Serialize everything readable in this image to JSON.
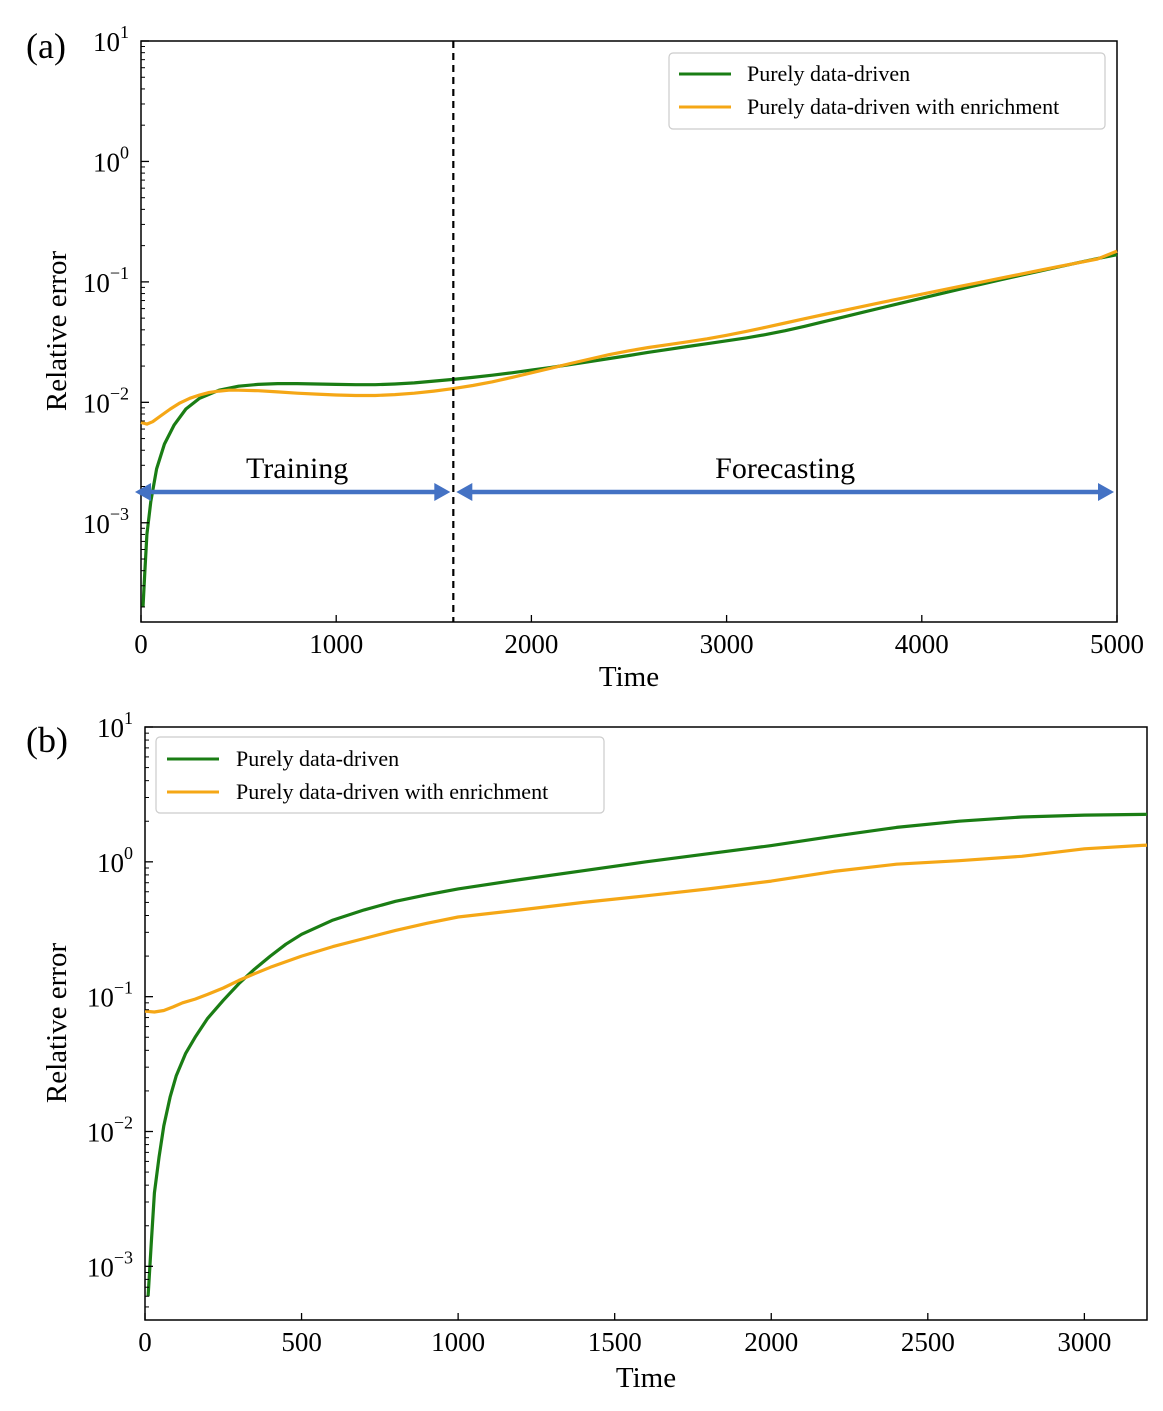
{
  "chart_data": [
    {
      "panel_label": "(a)",
      "type": "line",
      "xlabel": "Time",
      "ylabel": "Relative error",
      "yscale": "log",
      "xlim": [
        0,
        5000
      ],
      "ylim": [
        0.00015,
        10
      ],
      "xticks": [
        {
          "value": 0,
          "label": "0"
        },
        {
          "value": 1000,
          "label": "1000"
        },
        {
          "value": 2000,
          "label": "2000"
        },
        {
          "value": 3000,
          "label": "3000"
        },
        {
          "value": 4000,
          "label": "4000"
        },
        {
          "value": 5000,
          "label": "5000"
        }
      ],
      "yticks": [
        {
          "value": 0.001,
          "base": "10",
          "exp": "−3"
        },
        {
          "value": 0.01,
          "base": "10",
          "exp": "−2"
        },
        {
          "value": 0.1,
          "base": "10",
          "exp": "−1"
        },
        {
          "value": 1,
          "base": "10",
          "exp": "0"
        },
        {
          "value": 10,
          "base": "10",
          "exp": "1"
        }
      ],
      "legend_position": "top-right",
      "series": [
        {
          "name": "Purely data-driven",
          "color": "#1a7d14",
          "points": [
            [
              10,
              0.0002
            ],
            [
              20,
              0.0004
            ],
            [
              30,
              0.0008
            ],
            [
              50,
              0.0015
            ],
            [
              80,
              0.0028
            ],
            [
              120,
              0.0045
            ],
            [
              170,
              0.0065
            ],
            [
              230,
              0.0088
            ],
            [
              300,
              0.0108
            ],
            [
              400,
              0.0126
            ],
            [
              500,
              0.0136
            ],
            [
              600,
              0.0141
            ],
            [
              700,
              0.0143
            ],
            [
              800,
              0.0143
            ],
            [
              900,
              0.0142
            ],
            [
              1000,
              0.0141
            ],
            [
              1100,
              0.014
            ],
            [
              1200,
              0.014
            ],
            [
              1300,
              0.0142
            ],
            [
              1400,
              0.0145
            ],
            [
              1500,
              0.015
            ],
            [
              1600,
              0.0155
            ],
            [
              1700,
              0.0161
            ],
            [
              1800,
              0.0168
            ],
            [
              1900,
              0.0176
            ],
            [
              2000,
              0.0185
            ],
            [
              2100,
              0.0195
            ],
            [
              2200,
              0.0206
            ],
            [
              2300,
              0.0218
            ],
            [
              2400,
              0.0231
            ],
            [
              2500,
              0.0245
            ],
            [
              2600,
              0.026
            ],
            [
              2700,
              0.0275
            ],
            [
              2800,
              0.0291
            ],
            [
              2900,
              0.0307
            ],
            [
              3000,
              0.0324
            ],
            [
              3100,
              0.0343
            ],
            [
              3200,
              0.0365
            ],
            [
              3300,
              0.0393
            ],
            [
              3400,
              0.0428
            ],
            [
              3500,
              0.0468
            ],
            [
              3600,
              0.0512
            ],
            [
              3700,
              0.056
            ],
            [
              3800,
              0.0613
            ],
            [
              3900,
              0.067
            ],
            [
              4000,
              0.0732
            ],
            [
              4100,
              0.08
            ],
            [
              4200,
              0.0873
            ],
            [
              4300,
              0.0952
            ],
            [
              4400,
              0.1037
            ],
            [
              4500,
              0.1128
            ],
            [
              4600,
              0.1225
            ],
            [
              4700,
              0.133
            ],
            [
              4800,
              0.1443
            ],
            [
              4900,
              0.1562
            ],
            [
              5000,
              0.168
            ]
          ]
        },
        {
          "name": "Purely data-driven with enrichment",
          "color": "#f5a716",
          "points": [
            [
              0,
              0.0068
            ],
            [
              30,
              0.0066
            ],
            [
              60,
              0.0069
            ],
            [
              100,
              0.0077
            ],
            [
              150,
              0.0088
            ],
            [
              200,
              0.0099
            ],
            [
              250,
              0.0108
            ],
            [
              300,
              0.0115
            ],
            [
              350,
              0.0121
            ],
            [
              400,
              0.0124
            ],
            [
              450,
              0.0126
            ],
            [
              500,
              0.0126
            ],
            [
              600,
              0.0125
            ],
            [
              700,
              0.0122
            ],
            [
              800,
              0.0119
            ],
            [
              900,
              0.0117
            ],
            [
              1000,
              0.0115
            ],
            [
              1100,
              0.0114
            ],
            [
              1200,
              0.0114
            ],
            [
              1300,
              0.0116
            ],
            [
              1400,
              0.0119
            ],
            [
              1500,
              0.0124
            ],
            [
              1600,
              0.013
            ],
            [
              1700,
              0.0138
            ],
            [
              1800,
              0.0148
            ],
            [
              1900,
              0.0161
            ],
            [
              2000,
              0.0176
            ],
            [
              2100,
              0.0192
            ],
            [
              2200,
              0.021
            ],
            [
              2300,
              0.0229
            ],
            [
              2400,
              0.0249
            ],
            [
              2500,
              0.0268
            ],
            [
              2600,
              0.0285
            ],
            [
              2700,
              0.0301
            ],
            [
              2800,
              0.0318
            ],
            [
              2900,
              0.0337
            ],
            [
              3000,
              0.036
            ],
            [
              3100,
              0.0388
            ],
            [
              3200,
              0.042
            ],
            [
              3300,
              0.0456
            ],
            [
              3400,
              0.0495
            ],
            [
              3500,
              0.0536
            ],
            [
              3600,
              0.058
            ],
            [
              3700,
              0.0627
            ],
            [
              3800,
              0.0678
            ],
            [
              3900,
              0.0732
            ],
            [
              4000,
              0.079
            ],
            [
              4100,
              0.0853
            ],
            [
              4200,
              0.092
            ],
            [
              4300,
              0.0992
            ],
            [
              4400,
              0.107
            ],
            [
              4500,
              0.1153
            ],
            [
              4600,
              0.1243
            ],
            [
              4700,
              0.1339
            ],
            [
              4800,
              0.1441
            ],
            [
              4900,
              0.155
            ],
            [
              5000,
              0.18
            ]
          ]
        }
      ],
      "annotations": {
        "divider_x": 1600,
        "arrow_y": 0.0018,
        "training_label": "Training",
        "forecasting_label": "Forecasting",
        "arrow_color": "#4472c4"
      }
    },
    {
      "panel_label": "(b)",
      "type": "line",
      "xlabel": "Time",
      "ylabel": "Relative error",
      "yscale": "log",
      "xlim": [
        0,
        3200
      ],
      "ylim": [
        0.0004,
        10
      ],
      "xticks": [
        {
          "value": 0,
          "label": "0"
        },
        {
          "value": 500,
          "label": "500"
        },
        {
          "value": 1000,
          "label": "1000"
        },
        {
          "value": 1500,
          "label": "1500"
        },
        {
          "value": 2000,
          "label": "2000"
        },
        {
          "value": 2500,
          "label": "2500"
        },
        {
          "value": 3000,
          "label": "3000"
        }
      ],
      "yticks": [
        {
          "value": 0.001,
          "base": "10",
          "exp": "−3"
        },
        {
          "value": 0.01,
          "base": "10",
          "exp": "−2"
        },
        {
          "value": 0.1,
          "base": "10",
          "exp": "−1"
        },
        {
          "value": 1,
          "base": "10",
          "exp": "0"
        },
        {
          "value": 10,
          "base": "10",
          "exp": "1"
        }
      ],
      "legend_position": "top-left",
      "series": [
        {
          "name": "Purely data-driven",
          "color": "#1a7d14",
          "points": [
            [
              10,
              0.0006
            ],
            [
              20,
              0.0015
            ],
            [
              30,
              0.0035
            ],
            [
              45,
              0.0065
            ],
            [
              60,
              0.011
            ],
            [
              80,
              0.018
            ],
            [
              100,
              0.026
            ],
            [
              130,
              0.038
            ],
            [
              160,
              0.05
            ],
            [
              200,
              0.069
            ],
            [
              250,
              0.094
            ],
            [
              300,
              0.125
            ],
            [
              350,
              0.16
            ],
            [
              400,
              0.2
            ],
            [
              450,
              0.245
            ],
            [
              500,
              0.29
            ],
            [
              600,
              0.37
            ],
            [
              700,
              0.44
            ],
            [
              800,
              0.51
            ],
            [
              900,
              0.57
            ],
            [
              1000,
              0.63
            ],
            [
              1200,
              0.74
            ],
            [
              1400,
              0.86
            ],
            [
              1600,
              1.0
            ],
            [
              1800,
              1.15
            ],
            [
              2000,
              1.32
            ],
            [
              2200,
              1.55
            ],
            [
              2400,
              1.8
            ],
            [
              2600,
              2.0
            ],
            [
              2800,
              2.15
            ],
            [
              3000,
              2.22
            ],
            [
              3200,
              2.25
            ]
          ]
        },
        {
          "name": "Purely data-driven with enrichment",
          "color": "#f5a716",
          "points": [
            [
              0,
              0.078
            ],
            [
              30,
              0.077
            ],
            [
              60,
              0.079
            ],
            [
              90,
              0.084
            ],
            [
              120,
              0.09
            ],
            [
              160,
              0.096
            ],
            [
              200,
              0.104
            ],
            [
              250,
              0.116
            ],
            [
              300,
              0.132
            ],
            [
              350,
              0.148
            ],
            [
              400,
              0.165
            ],
            [
              500,
              0.2
            ],
            [
              600,
              0.235
            ],
            [
              700,
              0.27
            ],
            [
              800,
              0.31
            ],
            [
              900,
              0.35
            ],
            [
              1000,
              0.39
            ],
            [
              1200,
              0.44
            ],
            [
              1400,
              0.5
            ],
            [
              1600,
              0.56
            ],
            [
              1800,
              0.63
            ],
            [
              2000,
              0.72
            ],
            [
              2200,
              0.85
            ],
            [
              2400,
              0.96
            ],
            [
              2600,
              1.02
            ],
            [
              2800,
              1.1
            ],
            [
              3000,
              1.25
            ],
            [
              3200,
              1.33
            ]
          ]
        }
      ]
    }
  ]
}
